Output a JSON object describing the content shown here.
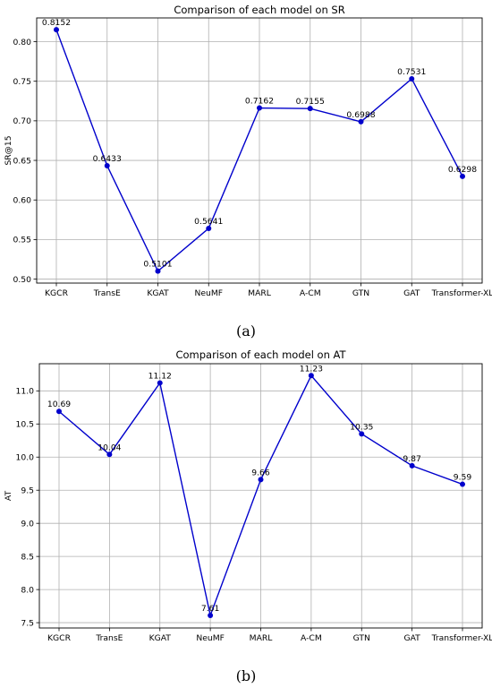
{
  "chart_data": [
    {
      "type": "line",
      "title": "Comparison of each model on SR",
      "ylabel": "SR@15",
      "xlabel": "",
      "categories": [
        "KGCR",
        "TransE",
        "KGAT",
        "NeuMF",
        "MARL",
        "A-CM",
        "GTN",
        "GAT",
        "Transformer-XL"
      ],
      "values": [
        0.8152,
        0.6433,
        0.5101,
        0.5641,
        0.7162,
        0.7155,
        0.6988,
        0.7531,
        0.6298
      ],
      "value_labels": [
        "0.8152",
        "0.6433",
        "0.5101",
        "0.5641",
        "0.7162",
        "0.7155",
        "0.6988",
        "0.7531",
        "0.6298"
      ],
      "yticks": [
        "0.50",
        "0.55",
        "0.60",
        "0.65",
        "0.70",
        "0.75",
        "0.80"
      ],
      "ylim": [
        0.495,
        0.83
      ],
      "grid": true,
      "color": "#0000cc",
      "panel_label": "(a)"
    },
    {
      "type": "line",
      "title": "Comparison of each model on AT",
      "ylabel": "AT",
      "xlabel": "",
      "categories": [
        "KGCR",
        "TransE",
        "KGAT",
        "NeuMF",
        "MARL",
        "A-CM",
        "GTN",
        "GAT",
        "Transformer-XL"
      ],
      "values": [
        10.69,
        10.04,
        11.12,
        7.61,
        9.66,
        11.23,
        10.35,
        9.87,
        9.59
      ],
      "value_labels": [
        "10.69",
        "10.04",
        "11.12",
        "7.61",
        "9.66",
        "11.23",
        "10.35",
        "9.87",
        "9.59"
      ],
      "yticks": [
        "7.5",
        "8.0",
        "8.5",
        "9.0",
        "9.5",
        "10.0",
        "10.5",
        "11.0"
      ],
      "ylim": [
        7.42,
        11.41
      ],
      "grid": true,
      "color": "#0000cc",
      "panel_label": "(b)"
    }
  ]
}
